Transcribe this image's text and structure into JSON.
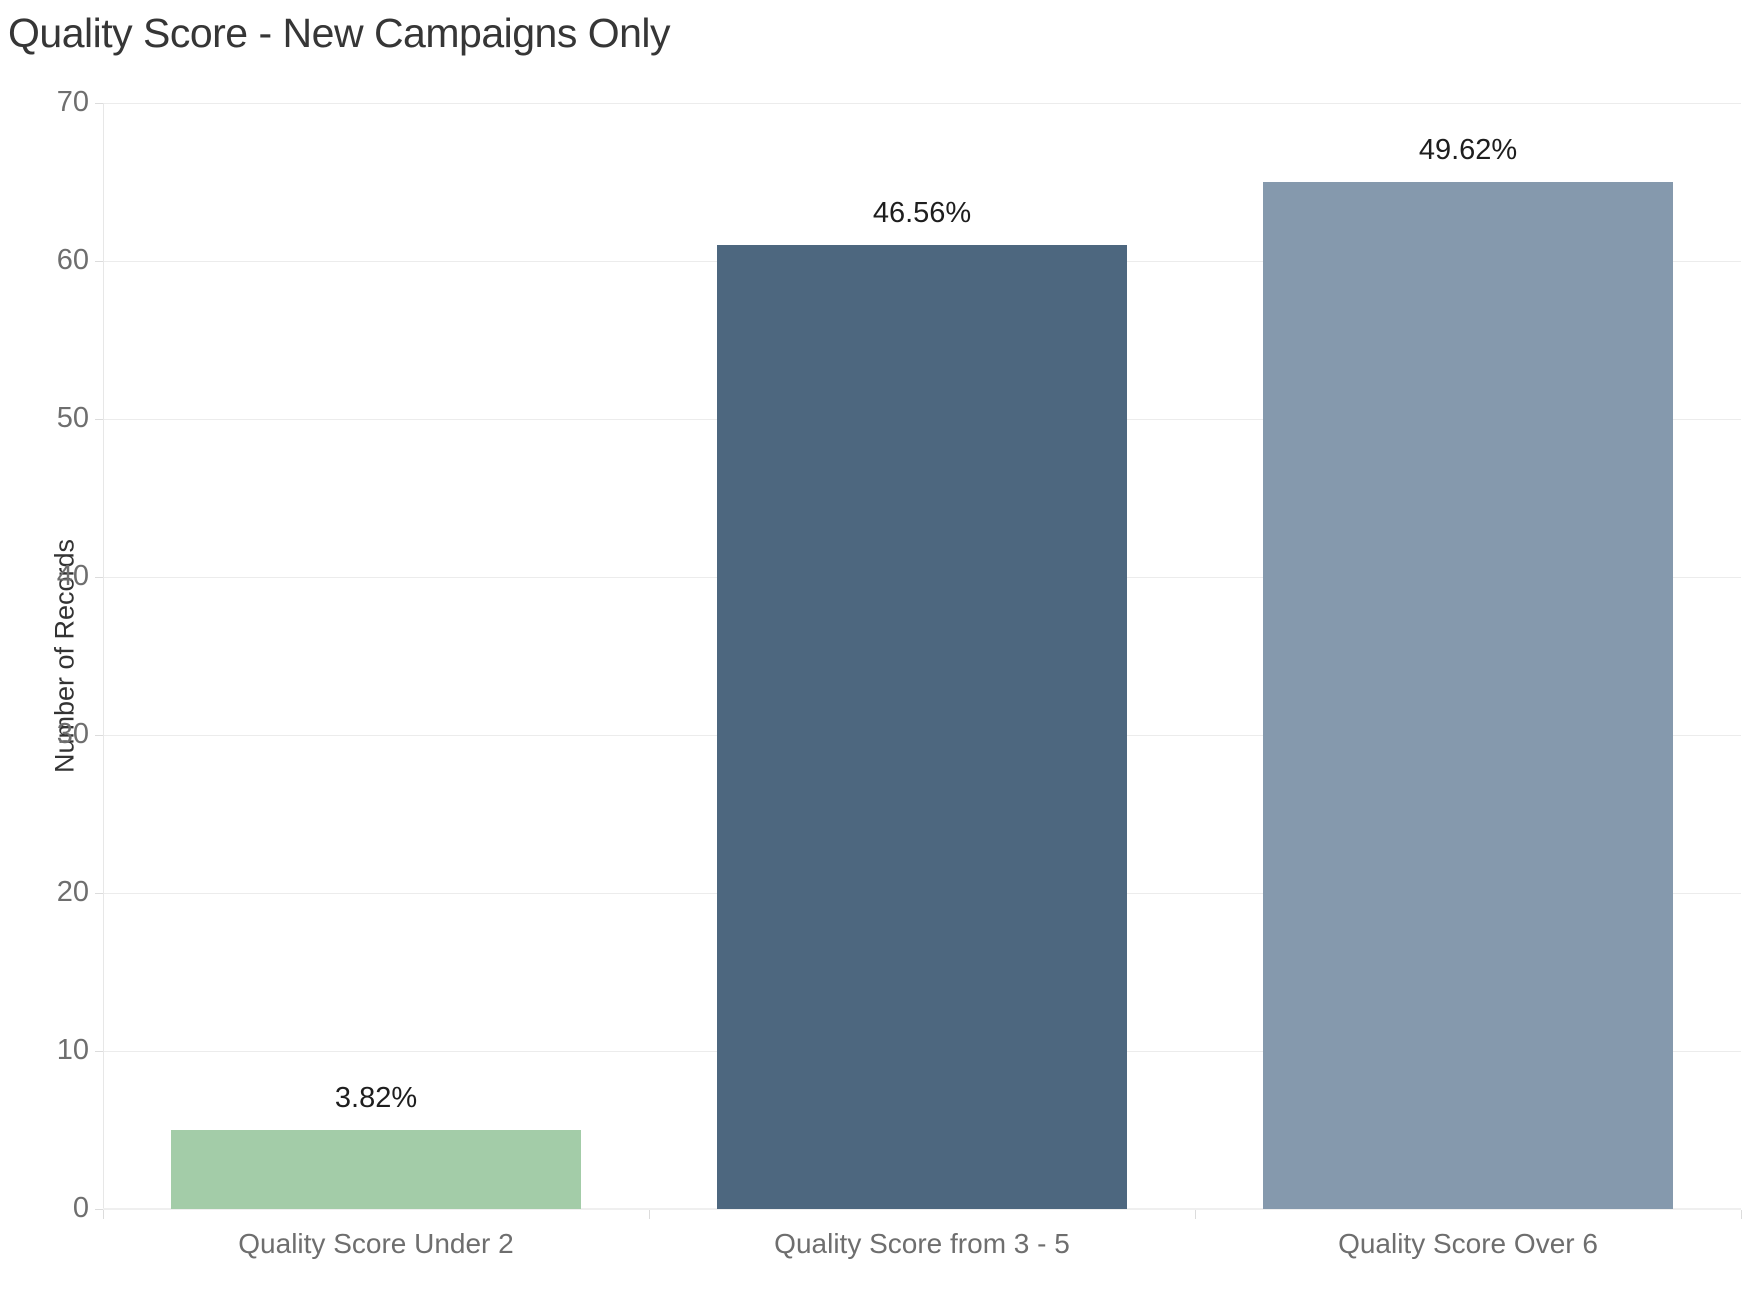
{
  "chart_data": {
    "type": "bar",
    "title": "Quality Score - New Campaigns Only",
    "ylabel": "Number of Records",
    "xlabel": "",
    "categories": [
      "Quality Score Under 2",
      "Quality Score from 3 - 5",
      "Quality Score Over 6"
    ],
    "values": [
      5,
      61,
      65
    ],
    "bar_labels": [
      "3.82%",
      "46.56%",
      "49.62%"
    ],
    "series": [
      {
        "name": "Number of Records",
        "values": [
          5,
          61,
          65
        ]
      }
    ],
    "ylim": [
      0,
      70
    ],
    "yticks": [
      0,
      10,
      20,
      30,
      40,
      50,
      60,
      70
    ],
    "grid": true,
    "legend_position": "none",
    "bar_colors": [
      "#a3cca8",
      "#4d677f",
      "#8599ad"
    ]
  },
  "colors": {
    "background": "#ffffff",
    "title_text": "#363636",
    "axis_title_text": "#333333",
    "tick_label_text": "#6e6e6e",
    "data_label_text": "#1e1e1e",
    "gridline": "#ececec",
    "tick_mark": "#dcdcdc"
  }
}
